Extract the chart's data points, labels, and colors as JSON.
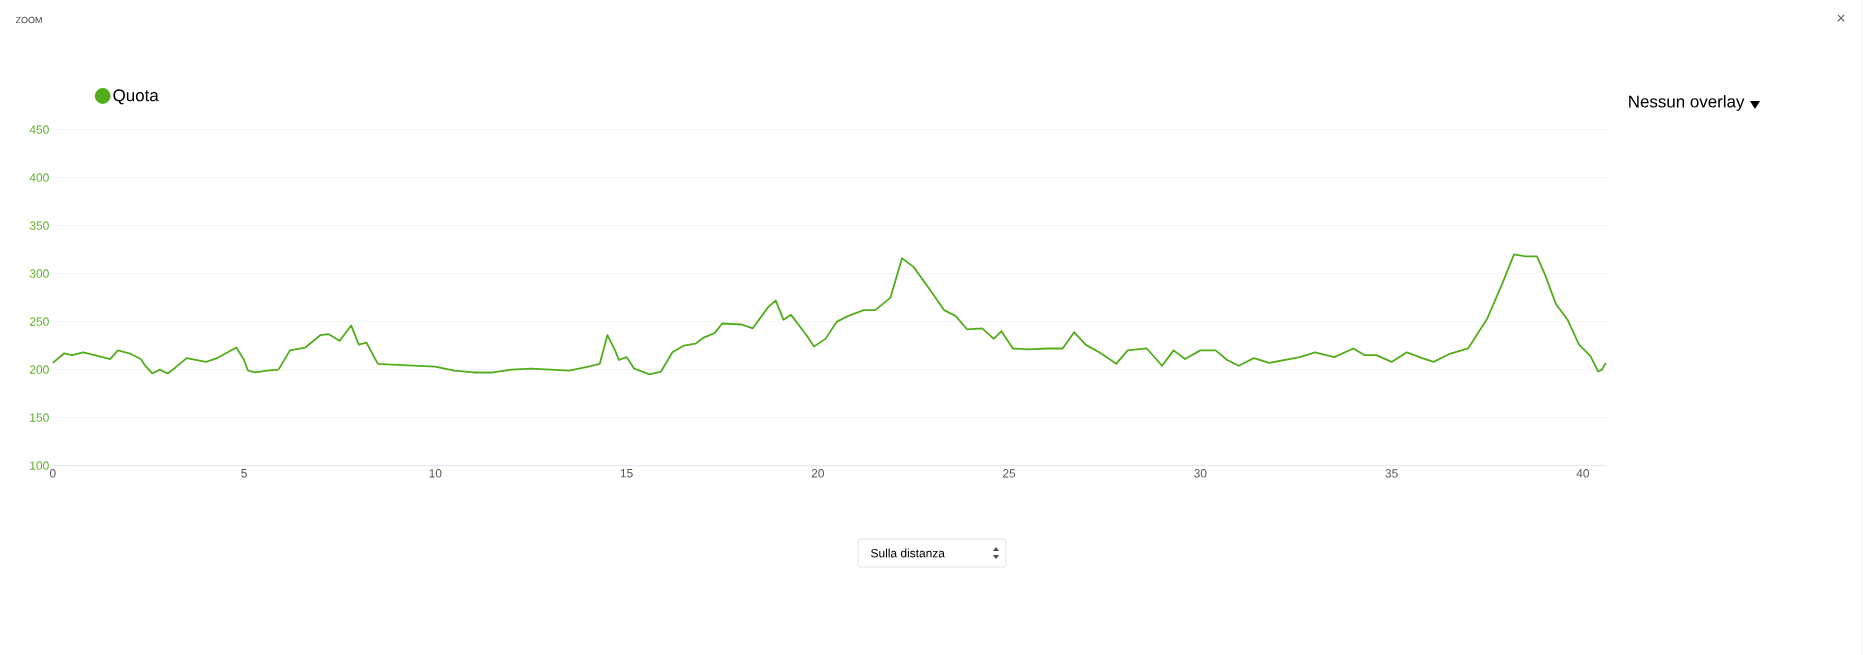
{
  "chart_data": {
    "type": "line",
    "title": "ZOOM",
    "annotations": [
      "Nessun overlay",
      "Sulla distanza",
      "×"
    ],
    "legend": "top left",
    "grid": "y",
    "marker": "none",
    "line_style": "solid",
    "xlim": [
      0,
      40.6
    ],
    "ylim": [
      100,
      450
    ],
    "xticks": [
      0,
      5,
      10,
      15,
      20,
      25,
      30,
      35,
      40
    ],
    "yticks": [
      100,
      150,
      200,
      250,
      300,
      350,
      400,
      450
    ],
    "x": [
      0,
      0.3,
      0.5,
      0.8,
      1.2,
      1.5,
      1.7,
      2.0,
      2.3,
      2.4,
      2.6,
      2.8,
      3.0,
      3.2,
      3.5,
      4.0,
      4.3,
      4.8,
      5.0,
      5.1,
      5.3,
      5.6,
      5.9,
      6.2,
      6.6,
      7.0,
      7.2,
      7.5,
      7.8,
      8.0,
      8.2,
      8.5,
      9.0,
      10.0,
      10.5,
      11.0,
      11.5,
      12.0,
      12.5,
      13.0,
      13.5,
      14.0,
      14.3,
      14.5,
      14.7,
      14.8,
      15.0,
      15.2,
      15.6,
      15.9,
      16.2,
      16.5,
      16.8,
      17.0,
      17.3,
      17.5,
      18.0,
      18.3,
      18.7,
      18.9,
      19.1,
      19.3,
      19.7,
      19.9,
      20.2,
      20.5,
      20.8,
      21.2,
      21.5,
      21.9,
      22.2,
      22.5,
      22.9,
      23.3,
      23.6,
      23.9,
      24.3,
      24.6,
      24.8,
      25.1,
      25.5,
      26.0,
      26.4,
      26.7,
      27.0,
      27.4,
      27.8,
      28.1,
      28.6,
      29.0,
      29.3,
      29.6,
      30.0,
      30.4,
      30.7,
      31.0,
      31.4,
      31.8,
      32.2,
      32.6,
      33.0,
      33.5,
      34.0,
      34.3,
      34.6,
      35.0,
      35.4,
      35.8,
      36.1,
      36.5,
      37.0,
      37.5,
      37.9,
      38.2,
      38.5,
      38.8,
      39.0,
      39.3,
      39.6,
      39.9,
      40.2,
      40.4,
      40.5,
      40.6
    ],
    "series": [
      {
        "name": "Quota",
        "color": "#52ad1c",
        "values": [
          207,
          217,
          215,
          218,
          214,
          211,
          220,
          217,
          211,
          205,
          196,
          200,
          196,
          202,
          212,
          208,
          212,
          223,
          210,
          199,
          197,
          199,
          200,
          220,
          223,
          236,
          237,
          230,
          246,
          226,
          228,
          206,
          205,
          203,
          199,
          197,
          197,
          200,
          201,
          200,
          199,
          203,
          206,
          236,
          220,
          210,
          213,
          201,
          195,
          198,
          218,
          225,
          227,
          233,
          238,
          248,
          247,
          243,
          265,
          272,
          252,
          257,
          236,
          224,
          232,
          250,
          256,
          262,
          262,
          275,
          316,
          307,
          285,
          262,
          256,
          242,
          243,
          232,
          240,
          222,
          221,
          222,
          222,
          239,
          226,
          217,
          206,
          220,
          222,
          204,
          220,
          211,
          220,
          220,
          210,
          204,
          212,
          207,
          210,
          213,
          218,
          213,
          222,
          215,
          215,
          208,
          218,
          212,
          208,
          216,
          222,
          253,
          290,
          320,
          318,
          318,
          300,
          268,
          252,
          226,
          214,
          198,
          200,
          207
        ]
      }
    ]
  }
}
